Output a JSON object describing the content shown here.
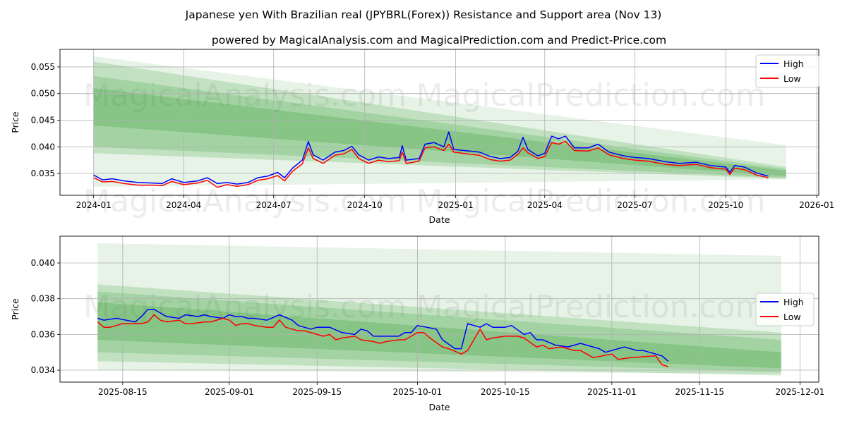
{
  "title": "Japanese yen With Brazilian real (JPYBRL(Forex)) Resistance and Support area (Nov 13)",
  "subtitle": "powered by MagicalAnalysis.com and MagicalPrediction.com and Predict-Price.com",
  "watermark": [
    "MagicalAnalysis.com",
    "MagicalPrediction.com"
  ],
  "colors": {
    "high": "#0000ff",
    "low": "#ff0000",
    "band": "#2e9a2e",
    "grid": "#b0b0b0"
  },
  "chart_data": [
    {
      "type": "line",
      "xlabel": "Date",
      "ylabel": "Price",
      "grid": true,
      "legend": {
        "placement": "top-right",
        "entries": [
          "High",
          "Low"
        ]
      },
      "xlim": [
        "2023-11-28",
        "2026-01-03"
      ],
      "ylim": [
        0.0309,
        0.0583
      ],
      "xticks": [
        "2024-01",
        "2024-04",
        "2024-07",
        "2024-10",
        "2025-01",
        "2025-04",
        "2025-07",
        "2025-10",
        "2026-01"
      ],
      "yticks": [
        "0.035",
        "0.040",
        "0.045",
        "0.050",
        "0.055"
      ],
      "bands": [
        {
          "start": "2024-01-01",
          "end": "2025-12-01",
          "top": [
            0.057,
            0.0403
          ],
          "bottom": [
            0.0325,
            0.0339
          ]
        },
        {
          "start": "2024-01-01",
          "end": "2025-12-01",
          "top": [
            0.056,
            0.0362
          ],
          "bottom": [
            0.0388,
            0.034
          ]
        },
        {
          "start": "2024-01-01",
          "end": "2025-12-01",
          "top": [
            0.0533,
            0.0358
          ],
          "bottom": [
            0.04,
            0.0342
          ]
        },
        {
          "start": "2024-01-01",
          "end": "2025-12-01",
          "top": [
            0.051,
            0.0355
          ],
          "bottom": [
            0.044,
            0.0345
          ]
        }
      ],
      "dates": [
        "2024-01-01",
        "2024-01-10",
        "2024-01-20",
        "2024-02-01",
        "2024-02-15",
        "2024-03-01",
        "2024-03-10",
        "2024-03-20",
        "2024-04-01",
        "2024-04-15",
        "2024-04-25",
        "2024-05-05",
        "2024-05-15",
        "2024-05-25",
        "2024-06-05",
        "2024-06-15",
        "2024-06-25",
        "2024-07-05",
        "2024-07-12",
        "2024-07-20",
        "2024-07-30",
        "2024-08-05",
        "2024-08-10",
        "2024-08-20",
        "2024-09-01",
        "2024-09-10",
        "2024-09-18",
        "2024-09-25",
        "2024-10-05",
        "2024-10-15",
        "2024-10-25",
        "2024-11-05",
        "2024-11-08",
        "2024-11-12",
        "2024-11-25",
        "2024-12-01",
        "2024-12-10",
        "2024-12-20",
        "2024-12-25",
        "2024-12-30",
        "2025-01-15",
        "2025-01-25",
        "2025-02-05",
        "2025-02-15",
        "2025-02-25",
        "2025-03-05",
        "2025-03-10",
        "2025-03-15",
        "2025-03-25",
        "2025-04-01",
        "2025-04-08",
        "2025-04-15",
        "2025-04-22",
        "2025-05-01",
        "2025-05-15",
        "2025-05-25",
        "2025-06-05",
        "2025-06-20",
        "2025-07-01",
        "2025-07-15",
        "2025-08-01",
        "2025-08-15",
        "2025-09-01",
        "2025-09-15",
        "2025-10-01",
        "2025-10-05",
        "2025-10-10",
        "2025-10-20",
        "2025-11-01",
        "2025-11-13"
      ],
      "series": [
        {
          "name": "High",
          "values": [
            0.0347,
            0.0338,
            0.034,
            0.0336,
            0.0333,
            0.0332,
            0.0331,
            0.034,
            0.0333,
            0.0336,
            0.0342,
            0.0331,
            0.0333,
            0.033,
            0.0333,
            0.0342,
            0.0345,
            0.0352,
            0.0342,
            0.036,
            0.0375,
            0.041,
            0.0385,
            0.0375,
            0.039,
            0.0393,
            0.0401,
            0.0385,
            0.0375,
            0.0381,
            0.0378,
            0.038,
            0.0402,
            0.0375,
            0.0378,
            0.0405,
            0.0408,
            0.04,
            0.0428,
            0.0395,
            0.0392,
            0.039,
            0.0382,
            0.0378,
            0.038,
            0.0392,
            0.0418,
            0.0395,
            0.0383,
            0.0388,
            0.042,
            0.0415,
            0.042,
            0.0398,
            0.0398,
            0.0405,
            0.039,
            0.0383,
            0.038,
            0.0378,
            0.0372,
            0.0369,
            0.0371,
            0.0365,
            0.0362,
            0.0352,
            0.0365,
            0.0362,
            0.0351,
            0.0345
          ]
        },
        {
          "name": "Low",
          "values": [
            0.0342,
            0.0334,
            0.0335,
            0.0331,
            0.0328,
            0.0328,
            0.0327,
            0.0335,
            0.0329,
            0.0332,
            0.0337,
            0.0324,
            0.0329,
            0.0326,
            0.0329,
            0.0337,
            0.034,
            0.0346,
            0.0336,
            0.0354,
            0.0368,
            0.0398,
            0.0378,
            0.0369,
            0.0384,
            0.0387,
            0.0395,
            0.0378,
            0.0369,
            0.0375,
            0.0372,
            0.0374,
            0.039,
            0.0369,
            0.0373,
            0.0398,
            0.04,
            0.0393,
            0.0405,
            0.039,
            0.0386,
            0.0384,
            0.0376,
            0.0373,
            0.0375,
            0.0386,
            0.0398,
            0.0389,
            0.0378,
            0.0382,
            0.0408,
            0.0405,
            0.041,
            0.0393,
            0.0392,
            0.0398,
            0.0385,
            0.0378,
            0.0375,
            0.0373,
            0.0367,
            0.0365,
            0.0367,
            0.0361,
            0.0358,
            0.0348,
            0.036,
            0.0357,
            0.0347,
            0.0342
          ]
        }
      ]
    },
    {
      "type": "line",
      "xlabel": "Date",
      "ylabel": "Price",
      "grid": true,
      "legend": {
        "placement": "center-right",
        "entries": [
          "High",
          "Low"
        ]
      },
      "xlim": [
        "2025-08-05",
        "2025-12-04"
      ],
      "ylim": [
        0.03333,
        0.0415
      ],
      "xticks": [
        "2025-08-15",
        "2025-09-01",
        "2025-09-15",
        "2025-10-01",
        "2025-10-15",
        "2025-11-01",
        "2025-11-15",
        "2025-12-01"
      ],
      "yticks": [
        "0.034",
        "0.036",
        "0.038",
        "0.040"
      ],
      "bands": [
        {
          "start": "2025-08-11",
          "end": "2025-11-28",
          "top": [
            0.0411,
            0.0404
          ],
          "bottom": [
            0.034,
            0.0338
          ]
        },
        {
          "start": "2025-08-11",
          "end": "2025-11-28",
          "top": [
            0.0388,
            0.0361
          ],
          "bottom": [
            0.0345,
            0.0337
          ]
        },
        {
          "start": "2025-08-11",
          "end": "2025-11-28",
          "top": [
            0.0384,
            0.0357
          ],
          "bottom": [
            0.035,
            0.0339
          ]
        },
        {
          "start": "2025-08-11",
          "end": "2025-11-28",
          "top": [
            0.0378,
            0.035
          ],
          "bottom": [
            0.0357,
            0.0341
          ]
        }
      ],
      "series": [
        {
          "name": "High",
          "dates": [
            "2025-08-11",
            "2025-08-12",
            "2025-08-14",
            "2025-08-17",
            "2025-08-18",
            "2025-08-19",
            "2025-08-20",
            "2025-08-22",
            "2025-08-24",
            "2025-08-25",
            "2025-08-27",
            "2025-08-28",
            "2025-08-29",
            "2025-08-31",
            "2025-09-01",
            "2025-09-02",
            "2025-09-03",
            "2025-09-04",
            "2025-09-05",
            "2025-09-07",
            "2025-09-09",
            "2025-09-11",
            "2025-09-12",
            "2025-09-14",
            "2025-09-15",
            "2025-09-17",
            "2025-09-19",
            "2025-09-21",
            "2025-09-22",
            "2025-09-23",
            "2025-09-24",
            "2025-09-26",
            "2025-09-28",
            "2025-09-29",
            "2025-09-30",
            "2025-10-01",
            "2025-10-04",
            "2025-10-05",
            "2025-10-07",
            "2025-10-08",
            "2025-10-09",
            "2025-10-11",
            "2025-10-12",
            "2025-10-13",
            "2025-10-15",
            "2025-10-16",
            "2025-10-18",
            "2025-10-19",
            "2025-10-20",
            "2025-10-21",
            "2025-10-23",
            "2025-10-25",
            "2025-10-27",
            "2025-10-28",
            "2025-10-30",
            "2025-10-31",
            "2025-11-02",
            "2025-11-03",
            "2025-11-05",
            "2025-11-06",
            "2025-11-08",
            "2025-11-09",
            "2025-11-10"
          ],
          "values": [
            0.0369,
            0.0368,
            0.0369,
            0.0367,
            0.037,
            0.0374,
            0.0374,
            0.037,
            0.0369,
            0.0371,
            0.037,
            0.0371,
            0.037,
            0.0369,
            0.0371,
            0.037,
            0.037,
            0.0369,
            0.0369,
            0.0368,
            0.0371,
            0.0368,
            0.0365,
            0.0363,
            0.0364,
            0.0364,
            0.0361,
            0.036,
            0.0363,
            0.0362,
            0.0359,
            0.0359,
            0.0359,
            0.0361,
            0.0361,
            0.0365,
            0.0363,
            0.0357,
            0.0352,
            0.0352,
            0.0366,
            0.0364,
            0.0366,
            0.0364,
            0.0364,
            0.0365,
            0.036,
            0.0361,
            0.0357,
            0.0357,
            0.0354,
            0.0353,
            0.0355,
            0.0354,
            0.0352,
            0.035,
            0.0352,
            0.0353,
            0.0351,
            0.0351,
            0.0349,
            0.0348,
            0.0345
          ]
        },
        {
          "name": "Low",
          "dates": [
            "2025-08-11",
            "2025-08-12",
            "2025-08-13",
            "2025-08-15",
            "2025-08-18",
            "2025-08-19",
            "2025-08-20",
            "2025-08-21",
            "2025-08-22",
            "2025-08-24",
            "2025-08-25",
            "2025-08-26",
            "2025-08-28",
            "2025-08-29",
            "2025-08-31",
            "2025-09-01",
            "2025-09-02",
            "2025-09-03",
            "2025-09-04",
            "2025-09-05",
            "2025-09-07",
            "2025-09-08",
            "2025-09-09",
            "2025-09-10",
            "2025-09-12",
            "2025-09-13",
            "2025-09-15",
            "2025-09-16",
            "2025-09-17",
            "2025-09-18",
            "2025-09-19",
            "2025-09-21",
            "2025-09-22",
            "2025-09-24",
            "2025-09-25",
            "2025-09-26",
            "2025-09-28",
            "2025-09-29",
            "2025-09-30",
            "2025-10-01",
            "2025-10-02",
            "2025-10-03",
            "2025-10-05",
            "2025-10-06",
            "2025-10-08",
            "2025-10-09",
            "2025-10-11",
            "2025-10-12",
            "2025-10-13",
            "2025-10-15",
            "2025-10-17",
            "2025-10-18",
            "2025-10-20",
            "2025-10-21",
            "2025-10-22",
            "2025-10-24",
            "2025-10-26",
            "2025-10-27",
            "2025-10-29",
            "2025-11-01",
            "2025-11-02",
            "2025-11-04",
            "2025-11-08",
            "2025-11-09",
            "2025-11-10"
          ],
          "values": [
            0.0367,
            0.0364,
            0.0364,
            0.0366,
            0.0366,
            0.0367,
            0.0371,
            0.0368,
            0.0367,
            0.0368,
            0.0366,
            0.0366,
            0.0367,
            0.0367,
            0.0369,
            0.0368,
            0.0365,
            0.0366,
            0.0366,
            0.0365,
            0.0364,
            0.0364,
            0.0368,
            0.0364,
            0.0362,
            0.0362,
            0.036,
            0.0359,
            0.036,
            0.0357,
            0.0358,
            0.0359,
            0.0357,
            0.0356,
            0.0355,
            0.0356,
            0.0357,
            0.0357,
            0.0359,
            0.0361,
            0.0361,
            0.0358,
            0.0353,
            0.0352,
            0.0349,
            0.0351,
            0.0363,
            0.0357,
            0.0358,
            0.0359,
            0.0359,
            0.0358,
            0.0353,
            0.0354,
            0.0352,
            0.0353,
            0.0351,
            0.0351,
            0.0347,
            0.0349,
            0.0346,
            0.0347,
            0.0348,
            0.0343,
            0.0342
          ]
        }
      ]
    }
  ]
}
